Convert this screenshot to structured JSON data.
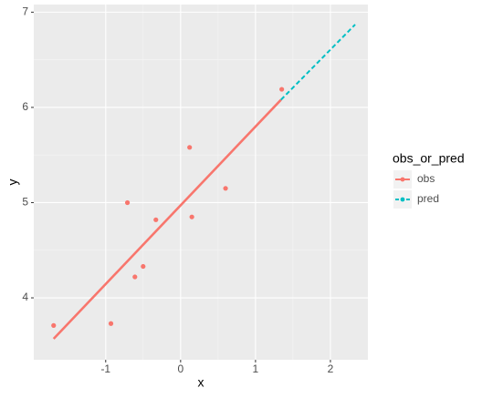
{
  "chart_data": {
    "type": "line",
    "x_label": "x",
    "y_label": "y",
    "legend_title": "obs_or_pred",
    "xlim": [
      -1.96,
      2.5
    ],
    "ylim": [
      3.35,
      7.08
    ],
    "xticks": [
      -1,
      0,
      1,
      2
    ],
    "yticks": [
      4,
      5,
      6,
      7
    ],
    "grid": true,
    "legend": "right",
    "series": [
      {
        "name": "obs",
        "color": "#F8766D",
        "dashed": false,
        "x": [
          -1.695,
          1.34
        ],
        "values": [
          3.57,
          6.08
        ]
      },
      {
        "name": "pred",
        "color": "#00BFC4",
        "dashed": true,
        "x": [
          1.34,
          2.33
        ],
        "values": [
          6.08,
          6.87
        ]
      }
    ],
    "points": {
      "color": "#F8766D",
      "x": [
        -1.695,
        -0.93,
        -0.71,
        -0.61,
        -0.5,
        -0.33,
        0.12,
        0.15,
        0.6,
        1.35
      ],
      "y": [
        3.71,
        3.73,
        5.0,
        4.22,
        4.33,
        4.82,
        5.58,
        4.85,
        5.15,
        6.19
      ]
    }
  }
}
